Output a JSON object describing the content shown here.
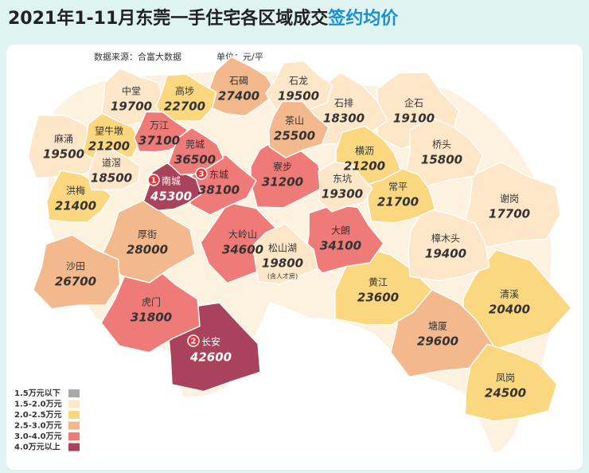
{
  "header": {
    "title": "2021年1-11月东莞一手住宅各区域成交",
    "title_highlight": "签约均价"
  },
  "source": "数据来源：合富大数据",
  "unit": "单位：元/平",
  "legend": [
    {
      "label": "1.5万元以下",
      "color": "#a9a9a9"
    },
    {
      "label": "1.5-2.0万元",
      "color": "#fde7c8"
    },
    {
      "label": "2.0-2.5万元",
      "color": "#fbd77f"
    },
    {
      "label": "2.5-3.0万元",
      "color": "#f3b98c"
    },
    {
      "label": "3.0-4.0万元",
      "color": "#ee7b78"
    },
    {
      "label": "4.0万元以上",
      "color": "#a8435b"
    }
  ],
  "regions": [
    {
      "name": "中堂",
      "price": 19700,
      "color": "#fde7c8"
    },
    {
      "name": "高埗",
      "price": 22700,
      "color": "#fbd77f"
    },
    {
      "name": "石碣",
      "price": 27400,
      "color": "#f3b98c"
    },
    {
      "name": "石龙",
      "price": 19500,
      "color": "#fde7c8"
    },
    {
      "name": "石排",
      "price": 18300,
      "color": "#fde7c8"
    },
    {
      "name": "企石",
      "price": 19100,
      "color": "#fde7c8"
    },
    {
      "name": "麻涌",
      "price": 19500,
      "color": "#fde7c8"
    },
    {
      "name": "望牛墩",
      "price": 21200,
      "color": "#fbd77f"
    },
    {
      "name": "万江",
      "price": 37100,
      "color": "#ee7b78"
    },
    {
      "name": "莞城",
      "price": 36500,
      "color": "#ee7b78"
    },
    {
      "name": "茶山",
      "price": 25500,
      "color": "#f3b98c"
    },
    {
      "name": "横沥",
      "price": 21200,
      "color": "#fbd77f"
    },
    {
      "name": "桥头",
      "price": 15800,
      "color": "#fde7c8"
    },
    {
      "name": "道滘",
      "price": 18500,
      "color": "#fde7c8"
    },
    {
      "name": "南城",
      "price": 45300,
      "color": "#a8435b",
      "rank": 1
    },
    {
      "name": "东城",
      "price": 38100,
      "color": "#ee7b78",
      "rank": 3
    },
    {
      "name": "寮步",
      "price": 31200,
      "color": "#ee7b78"
    },
    {
      "name": "东坑",
      "price": 19300,
      "color": "#fde7c8"
    },
    {
      "name": "常平",
      "price": 21700,
      "color": "#fbd77f"
    },
    {
      "name": "谢岗",
      "price": 17700,
      "color": "#fde7c8"
    },
    {
      "name": "洪梅",
      "price": 21400,
      "color": "#fbd77f"
    },
    {
      "name": "厚街",
      "price": 28000,
      "color": "#f3b98c"
    },
    {
      "name": "大岭山",
      "price": 34600,
      "color": "#ee7b78"
    },
    {
      "name": "松山湖",
      "price": 19800,
      "color": "#fde7c8",
      "note": "(含人才房)"
    },
    {
      "name": "大朗",
      "price": 34100,
      "color": "#ee7b78"
    },
    {
      "name": "樟木头",
      "price": 19400,
      "color": "#fde7c8"
    },
    {
      "name": "沙田",
      "price": 26700,
      "color": "#f3b98c"
    },
    {
      "name": "黄江",
      "price": 23600,
      "color": "#fbd77f"
    },
    {
      "name": "虎门",
      "price": 31800,
      "color": "#ee7b78"
    },
    {
      "name": "清溪",
      "price": 20400,
      "color": "#fbd77f"
    },
    {
      "name": "长安",
      "price": 42600,
      "color": "#a8435b",
      "rank": 2
    },
    {
      "name": "塘厦",
      "price": 29600,
      "color": "#f3b98c"
    },
    {
      "name": "凤岗",
      "price": 24500,
      "color": "#fbd77f"
    }
  ]
}
